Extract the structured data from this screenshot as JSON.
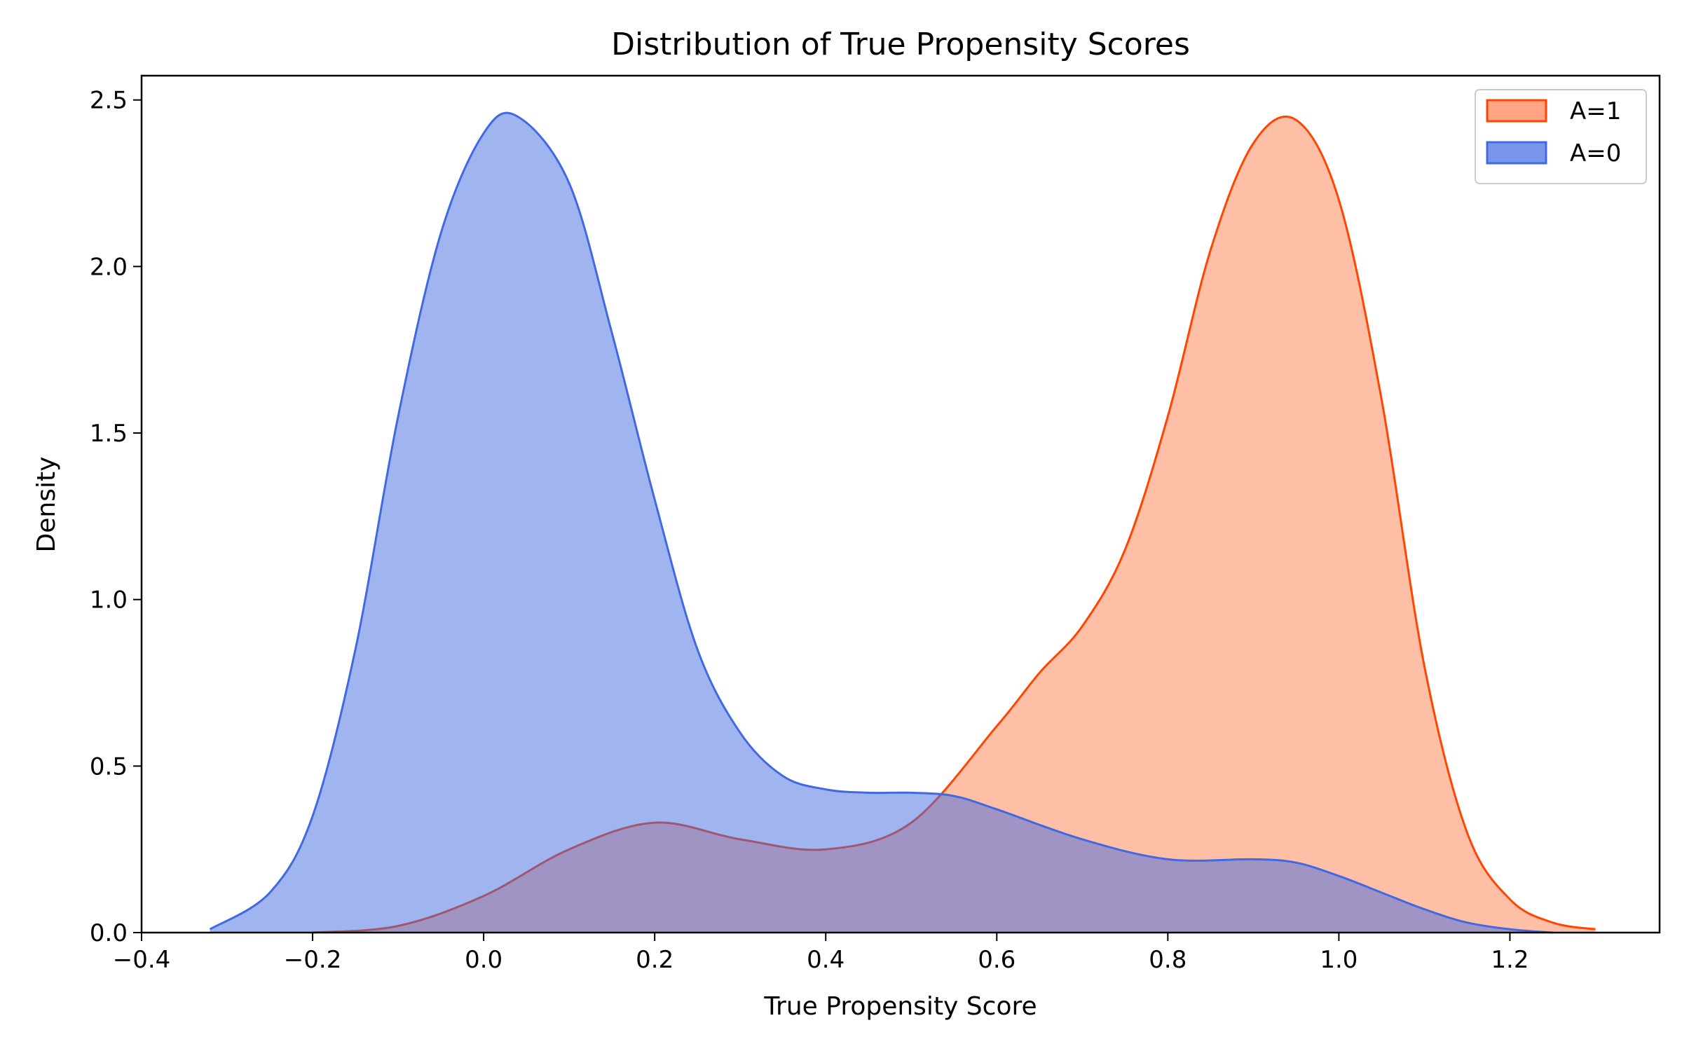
{
  "chart_data": {
    "type": "area",
    "title": "Distribution of True Propensity Scores",
    "xlabel": "True Propensity Score",
    "ylabel": "Density",
    "xlim": [
      -0.4,
      1.375
    ],
    "ylim": [
      0,
      2.573
    ],
    "xticks": [
      -0.4,
      -0.2,
      0.0,
      0.2,
      0.4,
      0.6,
      0.8,
      1.0,
      1.2
    ],
    "xtick_labels": [
      "−0.4",
      "−0.2",
      "0.0",
      "0.2",
      "0.4",
      "0.6",
      "0.8",
      "1.0",
      "1.2"
    ],
    "yticks": [
      0.0,
      0.5,
      1.0,
      1.5,
      2.0,
      2.5
    ],
    "ytick_labels": [
      "0.0",
      "0.5",
      "1.0",
      "1.5",
      "2.0",
      "2.5"
    ],
    "grid": false,
    "legend_position": "top-right",
    "series": [
      {
        "name": "A=1",
        "color": "#ff4500",
        "fill": "#ff7f50",
        "x": [
          -0.2,
          -0.1,
          0.0,
          0.1,
          0.2,
          0.3,
          0.4,
          0.5,
          0.6,
          0.65,
          0.7,
          0.75,
          0.8,
          0.85,
          0.9,
          0.95,
          1.0,
          1.05,
          1.1,
          1.15,
          1.2,
          1.25,
          1.3
        ],
        "y": [
          0.0,
          0.02,
          0.11,
          0.25,
          0.33,
          0.28,
          0.25,
          0.33,
          0.62,
          0.78,
          0.92,
          1.15,
          1.55,
          2.05,
          2.37,
          2.44,
          2.2,
          1.6,
          0.8,
          0.3,
          0.1,
          0.03,
          0.01
        ]
      },
      {
        "name": "A=0",
        "color": "#4169e1",
        "fill": "#4169e1",
        "x": [
          -0.32,
          -0.25,
          -0.2,
          -0.15,
          -0.1,
          -0.05,
          0.0,
          0.04,
          0.1,
          0.15,
          0.2,
          0.25,
          0.3,
          0.35,
          0.4,
          0.45,
          0.5,
          0.55,
          0.6,
          0.7,
          0.8,
          0.9,
          0.95,
          1.0,
          1.05,
          1.1,
          1.15,
          1.2,
          1.25
        ],
        "y": [
          0.01,
          0.12,
          0.35,
          0.85,
          1.55,
          2.1,
          2.4,
          2.45,
          2.25,
          1.8,
          1.3,
          0.85,
          0.6,
          0.47,
          0.43,
          0.42,
          0.42,
          0.41,
          0.37,
          0.28,
          0.22,
          0.22,
          0.21,
          0.17,
          0.12,
          0.07,
          0.03,
          0.01,
          0.0
        ]
      }
    ]
  }
}
